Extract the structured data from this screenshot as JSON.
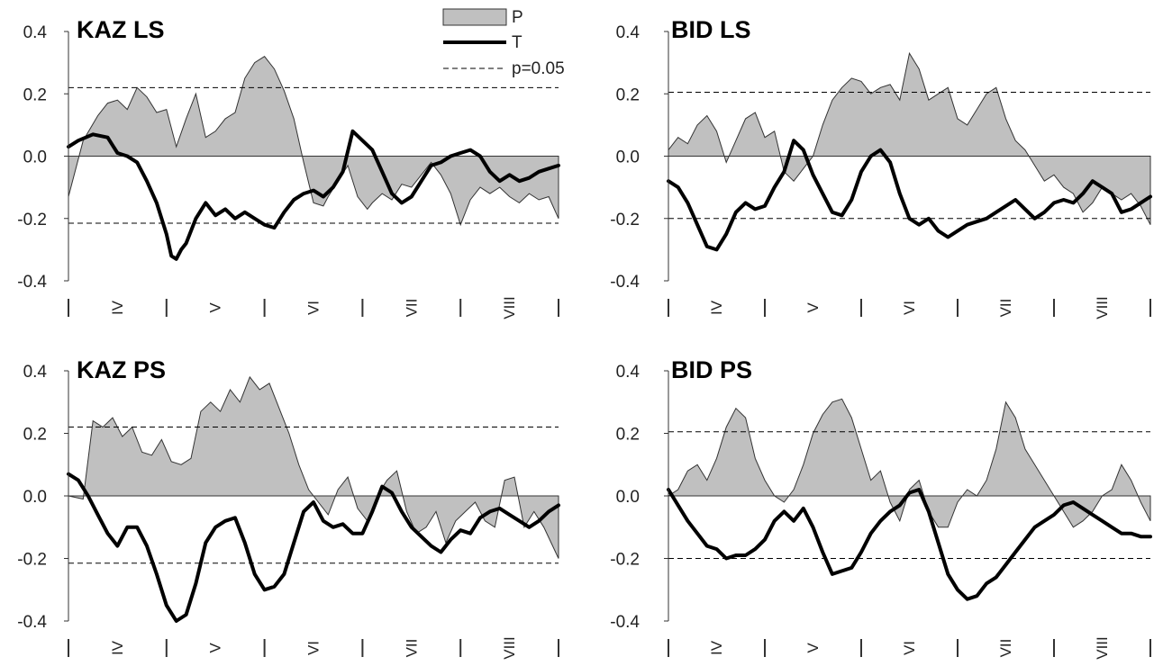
{
  "colors": {
    "precip_fill": "#c0c0c0",
    "precip_stroke": "#333333",
    "temp_line": "#000000",
    "threshold": "#000000",
    "axis": "#333333"
  },
  "legend": {
    "p_label": "P",
    "t_label": "T",
    "sig_label": "p=0.05"
  },
  "chart_data": [
    {
      "type": "area",
      "title": "KAZ LS",
      "ylim": [
        -0.4,
        0.4
      ],
      "yticks": [
        "0.4",
        "0.2",
        "0.0",
        "-0.2",
        "-0.4"
      ],
      "months": [
        "IV",
        "V",
        "VI",
        "VII",
        "VIII"
      ],
      "threshold": [
        0.22,
        -0.215
      ],
      "series": [
        {
          "name": "P",
          "x": [
            0,
            0.03,
            0.06,
            0.08,
            0.1,
            0.12,
            0.14,
            0.16,
            0.18,
            0.2,
            0.22,
            0.24,
            0.26,
            0.28,
            0.3,
            0.32,
            0.34,
            0.36,
            0.38,
            0.4,
            0.42,
            0.44,
            0.46,
            0.48,
            0.5,
            0.52,
            0.53,
            0.55,
            0.57,
            0.59,
            0.61,
            0.62,
            0.64,
            0.66,
            0.68,
            0.7,
            0.72,
            0.74,
            0.76,
            0.78,
            0.8,
            0.82,
            0.84,
            0.86,
            0.88,
            0.9,
            0.92,
            0.94,
            0.96,
            0.98,
            1.0
          ],
          "values": [
            -0.13,
            0.05,
            0.13,
            0.17,
            0.18,
            0.15,
            0.22,
            0.19,
            0.14,
            0.15,
            0.03,
            0.12,
            0.2,
            0.06,
            0.08,
            0.12,
            0.14,
            0.25,
            0.3,
            0.32,
            0.28,
            0.21,
            0.12,
            -0.02,
            -0.15,
            -0.16,
            -0.13,
            -0.08,
            -0.03,
            -0.13,
            -0.17,
            -0.15,
            -0.12,
            -0.14,
            -0.09,
            -0.1,
            -0.06,
            -0.02,
            -0.06,
            -0.12,
            -0.22,
            -0.14,
            -0.1,
            -0.12,
            -0.1,
            -0.13,
            -0.15,
            -0.12,
            -0.14,
            -0.13,
            -0.2
          ]
        },
        {
          "name": "T",
          "x": [
            0,
            0.02,
            0.05,
            0.08,
            0.1,
            0.12,
            0.14,
            0.16,
            0.18,
            0.2,
            0.21,
            0.22,
            0.23,
            0.24,
            0.26,
            0.28,
            0.3,
            0.32,
            0.34,
            0.36,
            0.38,
            0.4,
            0.42,
            0.44,
            0.46,
            0.48,
            0.5,
            0.52,
            0.54,
            0.56,
            0.58,
            0.6,
            0.62,
            0.64,
            0.66,
            0.68,
            0.7,
            0.72,
            0.74,
            0.76,
            0.78,
            0.8,
            0.82,
            0.84,
            0.86,
            0.88,
            0.9,
            0.92,
            0.94,
            0.96,
            0.98,
            1.0
          ],
          "values": [
            0.03,
            0.05,
            0.07,
            0.06,
            0.01,
            0.0,
            -0.02,
            -0.08,
            -0.15,
            -0.25,
            -0.32,
            -0.33,
            -0.3,
            -0.28,
            -0.2,
            -0.15,
            -0.19,
            -0.17,
            -0.2,
            -0.18,
            -0.2,
            -0.22,
            -0.23,
            -0.18,
            -0.14,
            -0.12,
            -0.11,
            -0.13,
            -0.1,
            -0.05,
            0.08,
            0.05,
            0.02,
            -0.05,
            -0.12,
            -0.15,
            -0.13,
            -0.08,
            -0.03,
            -0.02,
            0.0,
            0.01,
            0.02,
            0.0,
            -0.05,
            -0.08,
            -0.06,
            -0.08,
            -0.07,
            -0.05,
            -0.04,
            -0.03
          ]
        }
      ]
    },
    {
      "type": "area",
      "title": "BID LS",
      "ylim": [
        -0.4,
        0.4
      ],
      "yticks": [
        "0.4",
        "0.2",
        "0.0",
        "-0.2",
        "-0.4"
      ],
      "months": [
        "IV",
        "V",
        "VI",
        "VII",
        "VIII"
      ],
      "threshold": [
        0.205,
        -0.2
      ],
      "series": [
        {
          "name": "P",
          "x": [
            0,
            0.02,
            0.04,
            0.06,
            0.08,
            0.1,
            0.12,
            0.14,
            0.16,
            0.18,
            0.2,
            0.22,
            0.24,
            0.26,
            0.28,
            0.3,
            0.32,
            0.34,
            0.36,
            0.38,
            0.4,
            0.42,
            0.44,
            0.46,
            0.48,
            0.5,
            0.52,
            0.54,
            0.56,
            0.58,
            0.6,
            0.62,
            0.64,
            0.66,
            0.68,
            0.7,
            0.72,
            0.74,
            0.76,
            0.78,
            0.8,
            0.82,
            0.84,
            0.86,
            0.88,
            0.9,
            0.92,
            0.94,
            0.96,
            0.98,
            1.0
          ],
          "values": [
            0.02,
            0.06,
            0.04,
            0.1,
            0.13,
            0.08,
            -0.02,
            0.05,
            0.12,
            0.14,
            0.06,
            0.08,
            -0.05,
            -0.08,
            -0.04,
            0.0,
            0.1,
            0.18,
            0.22,
            0.25,
            0.24,
            0.2,
            0.22,
            0.23,
            0.18,
            0.33,
            0.28,
            0.18,
            0.2,
            0.22,
            0.12,
            0.1,
            0.15,
            0.2,
            0.22,
            0.12,
            0.05,
            0.02,
            -0.03,
            -0.08,
            -0.06,
            -0.1,
            -0.12,
            -0.18,
            -0.15,
            -0.1,
            -0.12,
            -0.14,
            -0.12,
            -0.16,
            -0.22
          ]
        },
        {
          "name": "T",
          "x": [
            0,
            0.02,
            0.04,
            0.06,
            0.08,
            0.1,
            0.12,
            0.14,
            0.16,
            0.18,
            0.2,
            0.22,
            0.24,
            0.26,
            0.28,
            0.3,
            0.32,
            0.34,
            0.36,
            0.38,
            0.4,
            0.42,
            0.44,
            0.46,
            0.48,
            0.5,
            0.52,
            0.54,
            0.56,
            0.58,
            0.6,
            0.62,
            0.64,
            0.66,
            0.68,
            0.7,
            0.72,
            0.74,
            0.76,
            0.78,
            0.8,
            0.82,
            0.84,
            0.86,
            0.88,
            0.9,
            0.92,
            0.94,
            0.96,
            0.98,
            1.0
          ],
          "values": [
            -0.08,
            -0.1,
            -0.15,
            -0.22,
            -0.29,
            -0.3,
            -0.25,
            -0.18,
            -0.15,
            -0.17,
            -0.16,
            -0.1,
            -0.05,
            0.05,
            0.02,
            -0.06,
            -0.12,
            -0.18,
            -0.19,
            -0.14,
            -0.05,
            0.0,
            0.02,
            -0.02,
            -0.12,
            -0.2,
            -0.22,
            -0.2,
            -0.24,
            -0.26,
            -0.24,
            -0.22,
            -0.21,
            -0.2,
            -0.18,
            -0.16,
            -0.14,
            -0.17,
            -0.2,
            -0.18,
            -0.15,
            -0.14,
            -0.15,
            -0.12,
            -0.08,
            -0.1,
            -0.12,
            -0.18,
            -0.17,
            -0.15,
            -0.13
          ]
        }
      ]
    },
    {
      "type": "area",
      "title": "KAZ PS",
      "ylim": [
        -0.4,
        0.4
      ],
      "yticks": [
        "0.4",
        "0.2",
        "0.0",
        "-0.2",
        "-0.4"
      ],
      "months": [
        "IV",
        "V",
        "VI",
        "VII",
        "VIII"
      ],
      "threshold": [
        0.22,
        -0.215
      ],
      "series": [
        {
          "name": "P",
          "x": [
            0,
            0.03,
            0.05,
            0.07,
            0.09,
            0.11,
            0.13,
            0.15,
            0.17,
            0.19,
            0.21,
            0.23,
            0.25,
            0.27,
            0.29,
            0.31,
            0.33,
            0.35,
            0.37,
            0.39,
            0.41,
            0.43,
            0.45,
            0.47,
            0.49,
            0.51,
            0.53,
            0.55,
            0.57,
            0.59,
            0.61,
            0.63,
            0.65,
            0.67,
            0.69,
            0.71,
            0.73,
            0.75,
            0.77,
            0.79,
            0.81,
            0.83,
            0.85,
            0.87,
            0.89,
            0.91,
            0.93,
            0.95,
            0.97,
            1.0
          ],
          "values": [
            0.0,
            -0.01,
            0.24,
            0.22,
            0.25,
            0.19,
            0.22,
            0.14,
            0.13,
            0.18,
            0.11,
            0.1,
            0.12,
            0.27,
            0.3,
            0.27,
            0.34,
            0.3,
            0.38,
            0.34,
            0.36,
            0.28,
            0.2,
            0.1,
            0.02,
            -0.02,
            -0.06,
            0.02,
            0.06,
            -0.04,
            -0.08,
            0.0,
            0.05,
            0.08,
            -0.05,
            -0.12,
            -0.1,
            -0.05,
            -0.15,
            -0.08,
            -0.05,
            -0.02,
            -0.08,
            -0.1,
            0.05,
            0.06,
            -0.1,
            -0.05,
            -0.1,
            -0.2
          ]
        },
        {
          "name": "T",
          "x": [
            0,
            0.02,
            0.04,
            0.06,
            0.08,
            0.1,
            0.12,
            0.14,
            0.16,
            0.18,
            0.2,
            0.22,
            0.24,
            0.26,
            0.28,
            0.3,
            0.32,
            0.34,
            0.36,
            0.38,
            0.4,
            0.42,
            0.44,
            0.46,
            0.48,
            0.5,
            0.52,
            0.54,
            0.56,
            0.58,
            0.6,
            0.62,
            0.64,
            0.66,
            0.68,
            0.7,
            0.72,
            0.74,
            0.76,
            0.78,
            0.8,
            0.82,
            0.84,
            0.86,
            0.88,
            0.9,
            0.92,
            0.94,
            0.96,
            0.98,
            1.0
          ],
          "values": [
            0.07,
            0.05,
            0.0,
            -0.06,
            -0.12,
            -0.16,
            -0.1,
            -0.1,
            -0.16,
            -0.25,
            -0.35,
            -0.4,
            -0.38,
            -0.28,
            -0.15,
            -0.1,
            -0.08,
            -0.07,
            -0.15,
            -0.25,
            -0.3,
            -0.29,
            -0.25,
            -0.15,
            -0.05,
            -0.02,
            -0.08,
            -0.1,
            -0.09,
            -0.12,
            -0.12,
            -0.05,
            0.03,
            0.01,
            -0.05,
            -0.1,
            -0.13,
            -0.16,
            -0.18,
            -0.14,
            -0.11,
            -0.12,
            -0.07,
            -0.05,
            -0.04,
            -0.06,
            -0.08,
            -0.1,
            -0.08,
            -0.05,
            -0.03
          ]
        }
      ]
    },
    {
      "type": "area",
      "title": "BID PS",
      "ylim": [
        -0.4,
        0.4
      ],
      "yticks": [
        "0.4",
        "0.2",
        "0.0",
        "-0.2",
        "-0.4"
      ],
      "months": [
        "IV",
        "V",
        "VI",
        "VII",
        "VIII"
      ],
      "threshold": [
        0.205,
        -0.2
      ],
      "series": [
        {
          "name": "P",
          "x": [
            0,
            0.02,
            0.04,
            0.06,
            0.08,
            0.1,
            0.12,
            0.14,
            0.16,
            0.18,
            0.2,
            0.22,
            0.24,
            0.26,
            0.28,
            0.3,
            0.32,
            0.34,
            0.36,
            0.38,
            0.4,
            0.42,
            0.44,
            0.46,
            0.48,
            0.5,
            0.52,
            0.54,
            0.56,
            0.58,
            0.6,
            0.62,
            0.64,
            0.66,
            0.68,
            0.7,
            0.72,
            0.74,
            0.76,
            0.78,
            0.8,
            0.82,
            0.84,
            0.86,
            0.88,
            0.9,
            0.92,
            0.94,
            0.96,
            0.98,
            1.0
          ],
          "values": [
            0.0,
            0.02,
            0.08,
            0.1,
            0.05,
            0.12,
            0.22,
            0.28,
            0.25,
            0.12,
            0.05,
            0.0,
            -0.02,
            0.02,
            0.1,
            0.2,
            0.26,
            0.3,
            0.31,
            0.25,
            0.15,
            0.05,
            0.08,
            -0.02,
            -0.08,
            0.02,
            0.05,
            -0.05,
            -0.1,
            -0.1,
            -0.02,
            0.02,
            0.0,
            0.05,
            0.15,
            0.3,
            0.25,
            0.15,
            0.1,
            0.05,
            0.0,
            -0.05,
            -0.1,
            -0.08,
            -0.05,
            0.0,
            0.02,
            0.1,
            0.05,
            -0.02,
            -0.08
          ]
        },
        {
          "name": "T",
          "x": [
            0,
            0.02,
            0.04,
            0.06,
            0.08,
            0.1,
            0.12,
            0.14,
            0.16,
            0.18,
            0.2,
            0.22,
            0.24,
            0.26,
            0.28,
            0.3,
            0.32,
            0.34,
            0.36,
            0.38,
            0.4,
            0.42,
            0.44,
            0.46,
            0.48,
            0.5,
            0.52,
            0.54,
            0.56,
            0.58,
            0.6,
            0.62,
            0.64,
            0.66,
            0.68,
            0.7,
            0.72,
            0.74,
            0.76,
            0.78,
            0.8,
            0.82,
            0.84,
            0.86,
            0.88,
            0.9,
            0.92,
            0.94,
            0.96,
            0.98,
            1.0
          ],
          "values": [
            0.02,
            -0.03,
            -0.08,
            -0.12,
            -0.16,
            -0.17,
            -0.2,
            -0.19,
            -0.19,
            -0.17,
            -0.14,
            -0.08,
            -0.05,
            -0.08,
            -0.04,
            -0.1,
            -0.18,
            -0.25,
            -0.24,
            -0.23,
            -0.18,
            -0.12,
            -0.08,
            -0.05,
            -0.03,
            0.01,
            0.02,
            -0.05,
            -0.15,
            -0.25,
            -0.3,
            -0.33,
            -0.32,
            -0.28,
            -0.26,
            -0.22,
            -0.18,
            -0.14,
            -0.1,
            -0.08,
            -0.06,
            -0.03,
            -0.02,
            -0.04,
            -0.06,
            -0.08,
            -0.1,
            -0.12,
            -0.12,
            -0.13,
            -0.13
          ]
        }
      ]
    }
  ]
}
